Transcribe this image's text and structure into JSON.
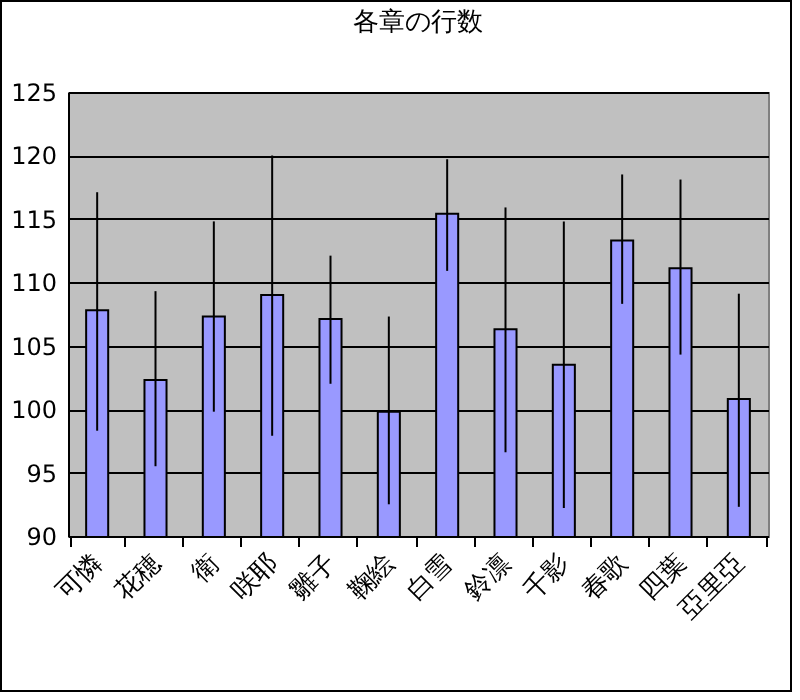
{
  "chart_data": {
    "type": "bar",
    "title": "各章の行数",
    "categories": [
      "可憐",
      "花穂",
      "衛",
      "咲耶",
      "雛子",
      "鞠絵",
      "白雪",
      "鈴凛",
      "千影",
      "春歌",
      "四葉",
      "亞里亞"
    ],
    "values": [
      107.8,
      102.3,
      107.3,
      109.0,
      107.1,
      99.8,
      115.4,
      106.3,
      103.5,
      113.3,
      111.1,
      100.8
    ],
    "errors": [
      [
        98.3,
        117.1
      ],
      [
        95.5,
        109.3
      ],
      [
        99.8,
        114.8
      ],
      [
        97.9,
        120.0
      ],
      [
        102.0,
        112.1
      ],
      [
        92.5,
        107.3
      ],
      [
        110.9,
        119.7
      ],
      [
        96.6,
        115.9
      ],
      [
        92.2,
        114.8
      ],
      [
        108.3,
        118.5
      ],
      [
        104.3,
        118.1
      ],
      [
        92.3,
        109.1
      ]
    ],
    "color": "#9999ff",
    "ylim": [
      90,
      125
    ],
    "yticks": [
      90,
      95,
      100,
      105,
      110,
      115,
      120,
      125
    ],
    "grid": "y"
  }
}
